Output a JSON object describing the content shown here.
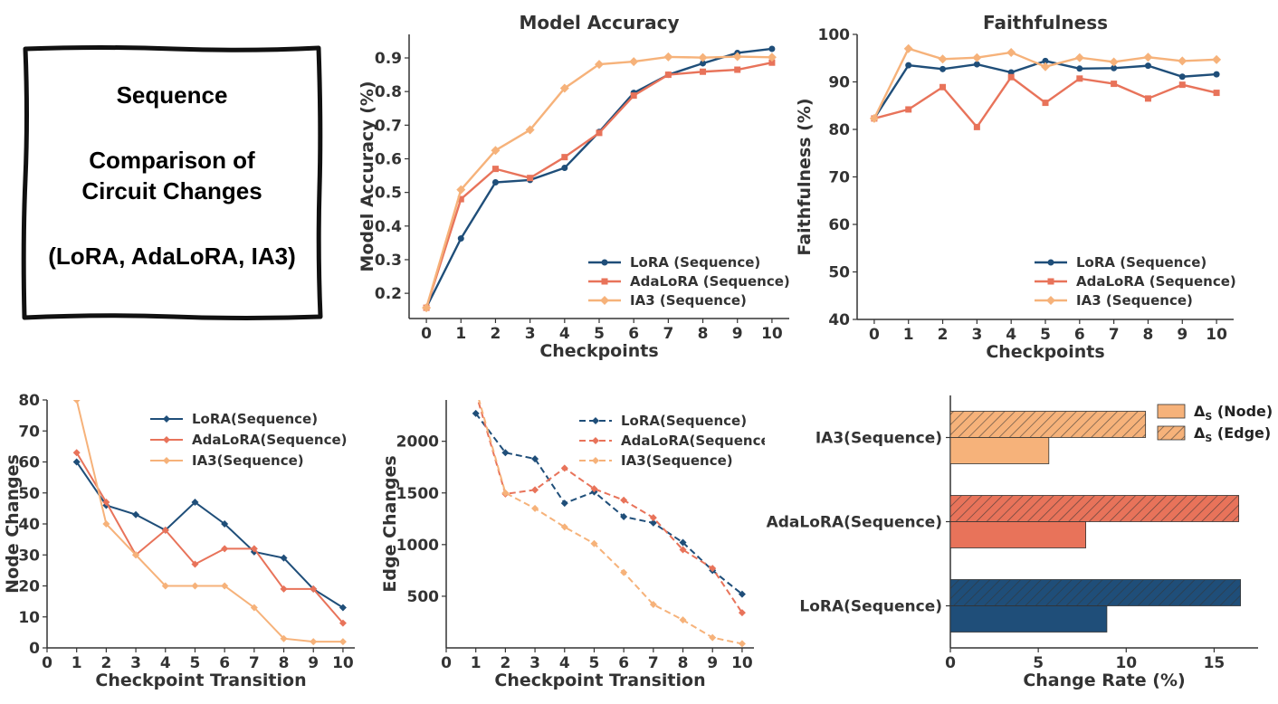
{
  "label_box": {
    "line1": "Sequence",
    "line2": "Comparison of",
    "line3": "Circuit Changes",
    "line4": "(LoRA, AdaLoRA, IA3)"
  },
  "colors": {
    "lora": "#1f4e79",
    "adalora": "#e8735a",
    "ia3": "#f6b27a"
  },
  "chart_data": [
    {
      "id": "accuracy",
      "type": "line",
      "title": "Model Accuracy",
      "xlabel": "Checkpoints",
      "ylabel": "Model Accuracy (%)",
      "x": [
        0,
        1,
        2,
        3,
        4,
        5,
        6,
        7,
        8,
        9,
        10
      ],
      "xticks": [
        "0",
        "1",
        "2",
        "3",
        "4",
        "5",
        "6",
        "7",
        "8",
        "9",
        "10"
      ],
      "xlim": [
        -0.5,
        10.5
      ],
      "ylim": [
        0.125,
        0.97
      ],
      "yticks": [
        "0.2",
        "0.3",
        "0.4",
        "0.5",
        "0.6",
        "0.7",
        "0.8",
        "0.9"
      ],
      "legend": "lower-right",
      "series": [
        {
          "name": "LoRA (Sequence)",
          "marker": "circle",
          "values": [
            0.158,
            0.363,
            0.53,
            0.537,
            0.573,
            0.68,
            0.796,
            0.85,
            0.884,
            0.915,
            0.927
          ]
        },
        {
          "name": "AdaLoRA (Sequence)",
          "marker": "square",
          "values": [
            0.157,
            0.48,
            0.57,
            0.543,
            0.605,
            0.677,
            0.788,
            0.85,
            0.859,
            0.865,
            0.886
          ]
        },
        {
          "name": "IA3 (Sequence)",
          "marker": "diamond",
          "values": [
            0.157,
            0.508,
            0.625,
            0.686,
            0.81,
            0.881,
            0.889,
            0.903,
            0.901,
            0.904,
            0.902
          ]
        }
      ]
    },
    {
      "id": "faithfulness",
      "type": "line",
      "title": "Faithfulness",
      "xlabel": "Checkpoints",
      "ylabel": "Faithfulness (%)",
      "x": [
        0,
        1,
        2,
        3,
        4,
        5,
        6,
        7,
        8,
        9,
        10
      ],
      "xticks": [
        "0",
        "1",
        "2",
        "3",
        "4",
        "5",
        "6",
        "7",
        "8",
        "9",
        "10"
      ],
      "xlim": [
        -0.5,
        10.5
      ],
      "ylim": [
        40,
        100
      ],
      "yticks": [
        "40",
        "50",
        "60",
        "70",
        "80",
        "90",
        "100"
      ],
      "legend": "lower-right",
      "series": [
        {
          "name": "LoRA (Sequence)",
          "marker": "circle",
          "values": [
            82.3,
            93.5,
            92.7,
            93.7,
            92.0,
            94.4,
            92.8,
            92.9,
            93.4,
            91.1,
            91.6
          ]
        },
        {
          "name": "AdaLoRA (Sequence)",
          "marker": "square",
          "values": [
            82.3,
            84.2,
            88.9,
            80.5,
            91.0,
            85.6,
            90.7,
            89.6,
            86.5,
            89.4,
            87.7
          ]
        },
        {
          "name": "IA3 (Sequence)",
          "marker": "diamond",
          "values": [
            82.3,
            97.0,
            94.8,
            95.1,
            96.2,
            93.2,
            95.1,
            94.2,
            95.2,
            94.4,
            94.7
          ]
        }
      ]
    },
    {
      "id": "node-changes",
      "type": "line",
      "title": "",
      "xlabel": "Checkpoint Transition",
      "ylabel": "Node Changes",
      "x": [
        1,
        2,
        3,
        4,
        5,
        6,
        7,
        8,
        9,
        10
      ],
      "xticks": [
        "0",
        "1",
        "2",
        "3",
        "4",
        "5",
        "6",
        "7",
        "8",
        "9",
        "10"
      ],
      "xlim": [
        0,
        10.4
      ],
      "ylim": [
        0,
        80
      ],
      "yticks": [
        "0",
        "10",
        "20",
        "30",
        "40",
        "50",
        "60",
        "70",
        "80"
      ],
      "legend": "upper-right",
      "series": [
        {
          "name": "LoRA(Sequence)",
          "values": [
            60,
            46,
            43,
            38,
            47,
            40,
            31,
            29,
            19,
            13
          ]
        },
        {
          "name": "AdaLoRA(Sequence)",
          "values": [
            63,
            47,
            30,
            38,
            27,
            32,
            32,
            19,
            19,
            8
          ]
        },
        {
          "name": "IA3(Sequence)",
          "values": [
            80,
            40,
            30,
            20,
            20,
            20,
            13,
            3,
            2,
            2
          ]
        }
      ]
    },
    {
      "id": "edge-changes",
      "type": "line",
      "title": "",
      "xlabel": "Checkpoint Transition",
      "ylabel": "Edge Changes",
      "x": [
        1,
        2,
        3,
        4,
        5,
        6,
        7,
        8,
        9,
        10
      ],
      "xticks": [
        "0",
        "1",
        "2",
        "3",
        "4",
        "5",
        "6",
        "7",
        "8",
        "9",
        "10"
      ],
      "xlim": [
        0,
        10.4
      ],
      "ylim": [
        0,
        2400
      ],
      "yticks": [
        "500",
        "1000",
        "1500",
        "2000"
      ],
      "ytick_values": [
        500,
        1000,
        1500,
        2000
      ],
      "legend": "upper-right",
      "series": [
        {
          "name": "LoRA(Sequence)",
          "values": [
            2270,
            1890,
            1830,
            1400,
            1510,
            1270,
            1210,
            1020,
            750,
            520
          ]
        },
        {
          "name": "AdaLoRA(Sequence)",
          "values": [
            2470,
            1490,
            1530,
            1740,
            1540,
            1430,
            1260,
            950,
            770,
            340
          ]
        },
        {
          "name": "IA3(Sequence)",
          "values": [
            2510,
            1500,
            1350,
            1170,
            1010,
            730,
            420,
            270,
            100,
            40
          ]
        }
      ]
    },
    {
      "id": "change-rate",
      "type": "bar",
      "orientation": "horizontal",
      "title": "",
      "xlabel": "Change Rate (%)",
      "ylabel": "",
      "categories": [
        "IA3(Sequence)",
        "AdaLoRA(Sequence)",
        "LoRA(Sequence)"
      ],
      "xlim": [
        0,
        17.5
      ],
      "xticks": [
        "0",
        "5",
        "10",
        "15"
      ],
      "legend": "upper-right",
      "legend_labels": [
        "Δ",
        "S",
        " (Node)",
        " (Edge)"
      ],
      "series": [
        {
          "name": "Node",
          "values": [
            5.6,
            7.7,
            8.9
          ]
        },
        {
          "name": "Edge",
          "values": [
            11.1,
            16.4,
            16.5
          ]
        }
      ]
    }
  ]
}
